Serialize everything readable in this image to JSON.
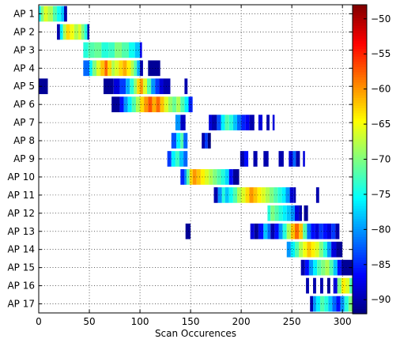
{
  "chart_data": {
    "type": "heatmap",
    "xlabel": "Scan Occurences",
    "ylabel": "",
    "xlim": [
      0,
      310
    ],
    "x_ticks": [
      0,
      50,
      100,
      150,
      200,
      250,
      300
    ],
    "categories": [
      "AP 1",
      "AP 2",
      "AP 3",
      "AP 4",
      "AP 5",
      "AP 6",
      "AP 7",
      "AP 8",
      "AP 9",
      "AP 10",
      "AP 11",
      "AP 12",
      "AP 13",
      "AP 14",
      "AP 15",
      "AP 16",
      "AP 17"
    ],
    "grid": true,
    "colormap": "jet",
    "colorbar": {
      "range": [
        -92,
        -48
      ],
      "ticks": [
        -50,
        -55,
        -60,
        -65,
        -70,
        -75,
        -80,
        -85,
        -90
      ]
    },
    "rows": [
      {
        "ap": "AP 1",
        "segments": [
          [
            0,
            2,
            -76
          ],
          [
            2,
            5,
            -70
          ],
          [
            5,
            9,
            -66
          ],
          [
            9,
            14,
            -68
          ],
          [
            14,
            18,
            -72
          ],
          [
            18,
            22,
            -75
          ],
          [
            22,
            25,
            -78
          ],
          [
            25,
            28,
            -90
          ]
        ]
      },
      {
        "ap": "AP 2",
        "segments": [
          [
            18,
            21,
            -90
          ],
          [
            21,
            24,
            -76
          ],
          [
            24,
            27,
            -68
          ],
          [
            27,
            31,
            -63
          ],
          [
            31,
            35,
            -65
          ],
          [
            35,
            39,
            -68
          ],
          [
            39,
            42,
            -66
          ],
          [
            42,
            45,
            -70
          ],
          [
            45,
            48,
            -74
          ],
          [
            48,
            50,
            -90
          ]
        ]
      },
      {
        "ap": "AP 3",
        "segments": [
          [
            44,
            49,
            -74
          ],
          [
            49,
            55,
            -72
          ],
          [
            55,
            62,
            -71
          ],
          [
            62,
            69,
            -74
          ],
          [
            69,
            75,
            -73
          ],
          [
            75,
            82,
            -70
          ],
          [
            82,
            89,
            -72
          ],
          [
            89,
            95,
            -75
          ],
          [
            95,
            100,
            -78
          ],
          [
            100,
            102,
            -87
          ]
        ]
      },
      {
        "ap": "AP 4",
        "segments": [
          [
            44,
            50,
            -82
          ],
          [
            50,
            53,
            -76
          ],
          [
            53,
            57,
            -70
          ],
          [
            57,
            61,
            -66
          ],
          [
            61,
            65,
            -62
          ],
          [
            65,
            68,
            -58
          ],
          [
            68,
            72,
            -63
          ],
          [
            72,
            75,
            -68
          ],
          [
            75,
            79,
            -66
          ],
          [
            79,
            83,
            -63
          ],
          [
            83,
            87,
            -61
          ],
          [
            87,
            91,
            -64
          ],
          [
            91,
            94,
            -68
          ],
          [
            94,
            97,
            -72
          ],
          [
            97,
            100,
            -79
          ],
          [
            100,
            103,
            -90
          ],
          [
            108,
            120,
            -91
          ]
        ]
      },
      {
        "ap": "AP 5",
        "segments": [
          [
            0,
            9,
            -91
          ],
          [
            64,
            74,
            -91
          ],
          [
            74,
            80,
            -88
          ],
          [
            80,
            86,
            -84
          ],
          [
            86,
            90,
            -79
          ],
          [
            90,
            94,
            -74
          ],
          [
            94,
            97,
            -69
          ],
          [
            97,
            100,
            -63
          ],
          [
            100,
            103,
            -60
          ],
          [
            103,
            107,
            -66
          ],
          [
            107,
            111,
            -72
          ],
          [
            111,
            115,
            -80
          ],
          [
            115,
            119,
            -84
          ],
          [
            119,
            123,
            -88
          ],
          [
            123,
            130,
            -90
          ],
          [
            144,
            147,
            -90
          ]
        ]
      },
      {
        "ap": "AP 6",
        "segments": [
          [
            72,
            80,
            -91
          ],
          [
            80,
            84,
            -86
          ],
          [
            84,
            88,
            -80
          ],
          [
            88,
            92,
            -76
          ],
          [
            92,
            96,
            -72
          ],
          [
            96,
            100,
            -68
          ],
          [
            100,
            104,
            -63
          ],
          [
            104,
            108,
            -60
          ],
          [
            108,
            112,
            -57
          ],
          [
            112,
            116,
            -61
          ],
          [
            116,
            120,
            -58
          ],
          [
            120,
            124,
            -62
          ],
          [
            124,
            128,
            -66
          ],
          [
            128,
            132,
            -69
          ],
          [
            132,
            136,
            -71
          ],
          [
            136,
            140,
            -68
          ],
          [
            140,
            144,
            -72
          ],
          [
            144,
            148,
            -76
          ],
          [
            148,
            152,
            -85
          ]
        ]
      },
      {
        "ap": "AP 7",
        "segments": [
          [
            135,
            140,
            -80
          ],
          [
            140,
            145,
            -89
          ],
          [
            168,
            171,
            -88
          ],
          [
            171,
            176,
            -90
          ],
          [
            176,
            180,
            -83
          ],
          [
            180,
            184,
            -76
          ],
          [
            184,
            188,
            -72
          ],
          [
            188,
            192,
            -74
          ],
          [
            192,
            196,
            -78
          ],
          [
            196,
            200,
            -82
          ],
          [
            200,
            204,
            -85
          ],
          [
            204,
            208,
            -87
          ],
          [
            208,
            213,
            -90
          ],
          [
            217,
            221,
            -88
          ],
          [
            225,
            228,
            -90
          ],
          [
            231,
            233,
            -88
          ]
        ]
      },
      {
        "ap": "AP 8",
        "segments": [
          [
            131,
            136,
            -83
          ],
          [
            136,
            140,
            -76
          ],
          [
            140,
            143,
            -72
          ],
          [
            143,
            147,
            -82
          ],
          [
            161,
            164,
            -90
          ],
          [
            164,
            167,
            -84
          ],
          [
            167,
            170,
            -92
          ]
        ]
      },
      {
        "ap": "AP 9",
        "segments": [
          [
            127,
            131,
            -84
          ],
          [
            131,
            135,
            -76
          ],
          [
            135,
            139,
            -73
          ],
          [
            139,
            143,
            -78
          ],
          [
            143,
            147,
            -82
          ],
          [
            199,
            203,
            -90
          ],
          [
            203,
            207,
            -86
          ],
          [
            212,
            216,
            -90
          ],
          [
            222,
            227,
            -90
          ],
          [
            237,
            242,
            -90
          ],
          [
            247,
            251,
            -88
          ],
          [
            251,
            254,
            -82
          ],
          [
            254,
            258,
            -90
          ],
          [
            261,
            263,
            -88
          ]
        ]
      },
      {
        "ap": "AP 10",
        "segments": [
          [
            140,
            144,
            -85
          ],
          [
            144,
            146,
            -80
          ],
          [
            146,
            149,
            -72
          ],
          [
            149,
            152,
            -63
          ],
          [
            152,
            156,
            -60
          ],
          [
            156,
            160,
            -62
          ],
          [
            160,
            164,
            -64
          ],
          [
            164,
            168,
            -66
          ],
          [
            168,
            172,
            -68
          ],
          [
            172,
            176,
            -70
          ],
          [
            176,
            180,
            -72
          ],
          [
            180,
            184,
            -74
          ],
          [
            184,
            188,
            -77
          ],
          [
            188,
            192,
            -86
          ],
          [
            192,
            198,
            -91
          ]
        ]
      },
      {
        "ap": "AP 11",
        "segments": [
          [
            173,
            177,
            -90
          ],
          [
            177,
            181,
            -80
          ],
          [
            181,
            184,
            -74
          ],
          [
            184,
            188,
            -78
          ],
          [
            188,
            192,
            -75
          ],
          [
            192,
            196,
            -72
          ],
          [
            196,
            200,
            -68
          ],
          [
            200,
            204,
            -66
          ],
          [
            204,
            208,
            -63
          ],
          [
            208,
            212,
            -60
          ],
          [
            212,
            216,
            -62
          ],
          [
            216,
            220,
            -64
          ],
          [
            220,
            224,
            -66
          ],
          [
            224,
            228,
            -68
          ],
          [
            228,
            232,
            -70
          ],
          [
            232,
            236,
            -72
          ],
          [
            236,
            240,
            -74
          ],
          [
            240,
            244,
            -76
          ],
          [
            244,
            248,
            -80
          ],
          [
            248,
            252,
            -88
          ],
          [
            252,
            254,
            -90
          ],
          [
            274,
            277,
            -90
          ]
        ]
      },
      {
        "ap": "AP 12",
        "segments": [
          [
            226,
            229,
            -74
          ],
          [
            229,
            233,
            -70
          ],
          [
            233,
            237,
            -72
          ],
          [
            237,
            241,
            -74
          ],
          [
            241,
            245,
            -76
          ],
          [
            245,
            249,
            -78
          ],
          [
            249,
            253,
            -80
          ],
          [
            253,
            257,
            -88
          ],
          [
            257,
            260,
            -90
          ],
          [
            262,
            266,
            -91
          ]
        ]
      },
      {
        "ap": "AP 13",
        "segments": [
          [
            145,
            150,
            -91
          ],
          [
            209,
            213,
            -88
          ],
          [
            213,
            217,
            -91
          ],
          [
            217,
            222,
            -86
          ],
          [
            222,
            226,
            -78
          ],
          [
            226,
            229,
            -82
          ],
          [
            229,
            233,
            -90
          ],
          [
            233,
            237,
            -86
          ],
          [
            237,
            241,
            -80
          ],
          [
            241,
            245,
            -74
          ],
          [
            245,
            249,
            -68
          ],
          [
            249,
            253,
            -62
          ],
          [
            253,
            257,
            -58
          ],
          [
            257,
            261,
            -62
          ],
          [
            261,
            265,
            -72
          ],
          [
            265,
            269,
            -82
          ],
          [
            269,
            273,
            -86
          ],
          [
            273,
            277,
            -88
          ],
          [
            277,
            281,
            -84
          ],
          [
            281,
            285,
            -86
          ],
          [
            285,
            289,
            -88
          ],
          [
            289,
            293,
            -84
          ],
          [
            293,
            297,
            -90
          ]
        ]
      },
      {
        "ap": "AP 14",
        "segments": [
          [
            245,
            249,
            -80
          ],
          [
            249,
            253,
            -76
          ],
          [
            253,
            257,
            -72
          ],
          [
            257,
            261,
            -68
          ],
          [
            261,
            265,
            -65
          ],
          [
            265,
            269,
            -62
          ],
          [
            269,
            273,
            -64
          ],
          [
            273,
            277,
            -66
          ],
          [
            277,
            281,
            -70
          ],
          [
            281,
            285,
            -74
          ],
          [
            285,
            289,
            -80
          ],
          [
            289,
            294,
            -88
          ],
          [
            294,
            300,
            -91
          ]
        ]
      },
      {
        "ap": "AP 15",
        "segments": [
          [
            259,
            263,
            -90
          ],
          [
            263,
            267,
            -86
          ],
          [
            267,
            271,
            -80
          ],
          [
            271,
            275,
            -76
          ],
          [
            275,
            279,
            -72
          ],
          [
            279,
            283,
            -70
          ],
          [
            283,
            287,
            -68
          ],
          [
            287,
            291,
            -72
          ],
          [
            291,
            295,
            -78
          ],
          [
            295,
            299,
            -86
          ],
          [
            299,
            310,
            -91
          ]
        ]
      },
      {
        "ap": "AP 16",
        "segments": [
          [
            264,
            267,
            -90
          ],
          [
            271,
            274,
            -90
          ],
          [
            278,
            281,
            -90
          ],
          [
            285,
            288,
            -91
          ],
          [
            291,
            295,
            -88
          ],
          [
            295,
            299,
            -70
          ],
          [
            299,
            303,
            -64
          ],
          [
            303,
            307,
            -66
          ],
          [
            307,
            310,
            -72
          ]
        ]
      },
      {
        "ap": "AP 17",
        "segments": [
          [
            268,
            271,
            -90
          ],
          [
            271,
            274,
            -80
          ],
          [
            274,
            278,
            -76
          ],
          [
            278,
            282,
            -72
          ],
          [
            282,
            286,
            -74
          ],
          [
            286,
            290,
            -78
          ],
          [
            290,
            294,
            -82
          ],
          [
            294,
            298,
            -86
          ],
          [
            298,
            302,
            -80
          ],
          [
            302,
            306,
            -74
          ],
          [
            306,
            310,
            -70
          ]
        ]
      }
    ]
  }
}
